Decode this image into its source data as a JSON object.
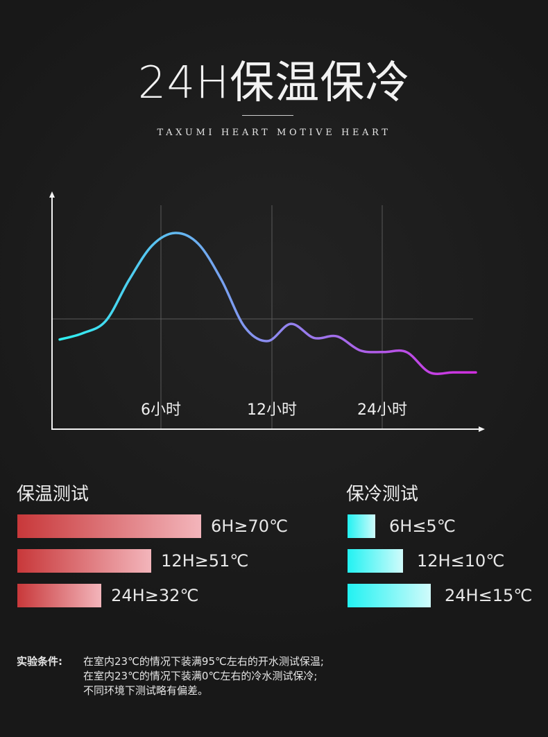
{
  "header": {
    "title": "24H保温保冷",
    "subtitle": "TAXUMI HEART MOTIVE HEART"
  },
  "chart_data": {
    "type": "line",
    "x_ticks": [
      "6小时",
      "12小时",
      "24小时"
    ],
    "series": [
      {
        "color_start": "#2ef0f0",
        "color_end": "#d22ee0",
        "points": [
          [
            0,
            0.32
          ],
          [
            1,
            0.36
          ],
          [
            2,
            0.44
          ],
          [
            3,
            0.7
          ],
          [
            4,
            0.92
          ],
          [
            5,
            1.0
          ],
          [
            6,
            0.93
          ],
          [
            7,
            0.7
          ],
          [
            8,
            0.4
          ],
          [
            9,
            0.31
          ],
          [
            10,
            0.42
          ],
          [
            11,
            0.33
          ],
          [
            12,
            0.34
          ],
          [
            13,
            0.25
          ],
          [
            14,
            0.24
          ],
          [
            15,
            0.24
          ],
          [
            16,
            0.11
          ],
          [
            17,
            0.11
          ],
          [
            18,
            0.11
          ]
        ]
      }
    ],
    "grid": true
  },
  "warm": {
    "title": "保温测试",
    "items": [
      {
        "label": "6H≥70℃",
        "value": 70
      },
      {
        "label": "12H≥51℃",
        "value": 51
      },
      {
        "label": "24H≥32℃",
        "value": 32
      }
    ]
  },
  "cold": {
    "title": "保冷测试",
    "items": [
      {
        "label": "6H≤5℃",
        "value": 5
      },
      {
        "label": "12H≤10℃",
        "value": 10
      },
      {
        "label": "24H≤15℃",
        "value": 15
      }
    ]
  },
  "notes": {
    "head": "实验条件:",
    "lines": [
      "在室内23℃的情况下装满95℃左右的开水测试保温;",
      "在室内23℃的情况下装满0℃左右的冷水测试保冷;",
      "不同环境下测试略有偏差。"
    ]
  }
}
